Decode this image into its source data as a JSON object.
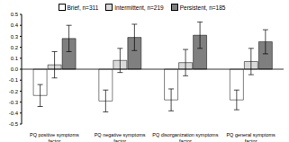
{
  "chart_data": {
    "type": "bar",
    "categories": [
      "PQ positive symptoms factor",
      "PQ negative symptoms factor",
      "PQ disorganization symptoms factor",
      "PQ general symptoms factor"
    ],
    "series": [
      {
        "name": "Brief, n=311",
        "color": "#ffffff",
        "values": [
          -0.24,
          -0.29,
          -0.28,
          -0.28
        ],
        "errors": [
          0.1,
          0.1,
          0.1,
          0.09
        ]
      },
      {
        "name": "Intermittent, n=219",
        "color": "#d9d9d9",
        "values": [
          0.04,
          0.08,
          0.06,
          0.07
        ],
        "errors": [
          0.12,
          0.11,
          0.12,
          0.12
        ]
      },
      {
        "name": "Persistent, n=185",
        "color": "#7f7f7f",
        "values": [
          0.28,
          0.29,
          0.31,
          0.25
        ],
        "errors": [
          0.12,
          0.12,
          0.12,
          0.11
        ]
      }
    ],
    "ylim": [
      -0.5,
      0.5
    ],
    "yticks": [
      -0.5,
      -0.4,
      -0.3,
      -0.2,
      -0.1,
      {
        "value": 0,
        "label": "0.0"
      },
      0.1,
      0.2,
      0.3,
      0.4,
      0.5
    ],
    "grid": false,
    "legend": "top"
  }
}
